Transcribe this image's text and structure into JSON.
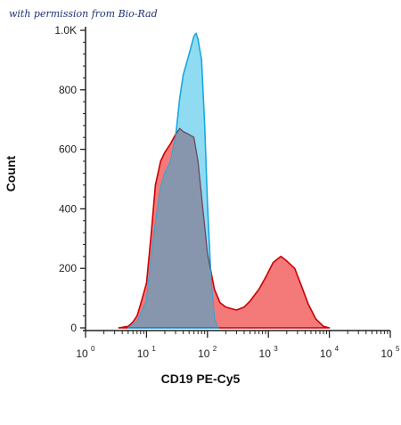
{
  "credit": "with permission from Bio-Rad",
  "chart_data": {
    "type": "area",
    "xlabel": "CD19 PE-Cy5",
    "ylabel": "Count",
    "x_scale": "log",
    "xlim": [
      1,
      100000
    ],
    "ylim": [
      0,
      1000
    ],
    "x_ticks": [
      {
        "base": "10",
        "exp": "0",
        "value": 1
      },
      {
        "base": "10",
        "exp": "1",
        "value": 10
      },
      {
        "base": "10",
        "exp": "2",
        "value": 100
      },
      {
        "base": "10",
        "exp": "3",
        "value": 1000
      },
      {
        "base": "10",
        "exp": "4",
        "value": 10000
      },
      {
        "base": "10",
        "exp": "5",
        "value": 100000
      }
    ],
    "y_ticks": [
      {
        "label": "0",
        "value": 0
      },
      {
        "label": "200",
        "value": 200
      },
      {
        "label": "400",
        "value": 400
      },
      {
        "label": "600",
        "value": 600
      },
      {
        "label": "800",
        "value": 800
      },
      {
        "label": "1.0K",
        "value": 1000
      }
    ],
    "series": [
      {
        "fill": "#f47a7a",
        "stroke": "#cc0000",
        "points": [
          [
            3.5,
            0
          ],
          [
            5,
            5
          ],
          [
            6,
            20
          ],
          [
            7,
            40
          ],
          [
            8,
            80
          ],
          [
            10,
            150
          ],
          [
            12,
            320
          ],
          [
            14,
            480
          ],
          [
            17,
            560
          ],
          [
            20,
            590
          ],
          [
            25,
            620
          ],
          [
            30,
            650
          ],
          [
            35,
            670
          ],
          [
            40,
            660
          ],
          [
            50,
            650
          ],
          [
            60,
            640
          ],
          [
            70,
            560
          ],
          [
            85,
            390
          ],
          [
            100,
            250
          ],
          [
            130,
            130
          ],
          [
            160,
            85
          ],
          [
            200,
            70
          ],
          [
            300,
            60
          ],
          [
            400,
            70
          ],
          [
            500,
            90
          ],
          [
            700,
            130
          ],
          [
            900,
            170
          ],
          [
            1200,
            220
          ],
          [
            1600,
            240
          ],
          [
            2000,
            225
          ],
          [
            2700,
            200
          ],
          [
            3500,
            140
          ],
          [
            4500,
            80
          ],
          [
            6000,
            30
          ],
          [
            8000,
            5
          ],
          [
            10000,
            0
          ]
        ]
      },
      {
        "fill": "#8fdcf2",
        "stroke": "#1aa7e0",
        "points": [
          [
            5,
            0
          ],
          [
            7,
            20
          ],
          [
            10,
            90
          ],
          [
            13,
            300
          ],
          [
            17,
            470
          ],
          [
            20,
            520
          ],
          [
            25,
            560
          ],
          [
            30,
            640
          ],
          [
            35,
            770
          ],
          [
            40,
            850
          ],
          [
            50,
            920
          ],
          [
            60,
            980
          ],
          [
            65,
            990
          ],
          [
            70,
            970
          ],
          [
            80,
            900
          ],
          [
            90,
            680
          ],
          [
            100,
            420
          ],
          [
            115,
            150
          ],
          [
            130,
            30
          ],
          [
            150,
            0
          ]
        ]
      }
    ],
    "overlap_color": "#8796ad"
  }
}
